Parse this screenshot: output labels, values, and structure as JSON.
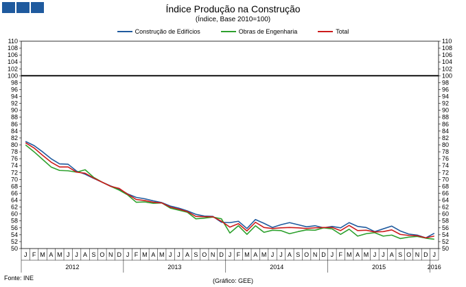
{
  "title": "Índice Produção na Construção",
  "subtitle": "(Índice, Base 2010=100)",
  "source": "Fonte: INE",
  "credit": "(Gráfico: GEE)",
  "logo": {
    "icon": "logo-squares-icon",
    "color": "#1f5a9e"
  },
  "chart_data": {
    "type": "line",
    "title": "Índice Produção na Construção",
    "subtitle": "(Índice, Base 2010=100)",
    "ylim": [
      50,
      110
    ],
    "y_ticks": [
      50,
      52,
      54,
      56,
      58,
      60,
      62,
      64,
      66,
      68,
      70,
      72,
      74,
      76,
      78,
      80,
      82,
      84,
      86,
      88,
      90,
      92,
      94,
      96,
      98,
      100,
      102,
      104,
      106,
      108,
      110
    ],
    "dual_y_axis": true,
    "reference_line": 100,
    "grid": false,
    "legend_position": "top-center",
    "months": [
      "J",
      "F",
      "M",
      "A",
      "M",
      "J",
      "J",
      "A",
      "S",
      "O",
      "N",
      "D",
      "J",
      "F",
      "M",
      "A",
      "M",
      "J",
      "J",
      "A",
      "S",
      "O",
      "N",
      "D",
      "J",
      "F",
      "M",
      "A",
      "M",
      "J",
      "J",
      "A",
      "S",
      "O",
      "N",
      "D",
      "J",
      "F",
      "M",
      "A",
      "M",
      "J",
      "J",
      "A",
      "S",
      "O",
      "N",
      "D",
      "J"
    ],
    "years": [
      {
        "label": "2012",
        "start": 0,
        "count": 12
      },
      {
        "label": "2013",
        "start": 12,
        "count": 12
      },
      {
        "label": "2014",
        "start": 24,
        "count": 12
      },
      {
        "label": "2015",
        "start": 36,
        "count": 12
      },
      {
        "label": "2016",
        "start": 48,
        "count": 1
      }
    ],
    "series": [
      {
        "name": "Construção de Edifícios",
        "color": "#1f5a9e",
        "values": [
          81.0,
          79.8,
          78.0,
          76.0,
          74.5,
          74.4,
          72.4,
          71.5,
          70.3,
          69.2,
          68.1,
          67.2,
          65.8,
          64.8,
          64.4,
          63.8,
          63.3,
          62.3,
          61.7,
          60.9,
          59.9,
          59.4,
          59.3,
          57.6,
          57.5,
          57.9,
          55.8,
          58.4,
          57.3,
          56.1,
          56.9,
          57.5,
          56.9,
          56.3,
          56.6,
          56.0,
          56.4,
          56.0,
          57.5,
          56.4,
          56.1,
          54.9,
          55.7,
          56.5,
          55.1,
          54.2,
          53.9,
          53.1,
          54.4
        ]
      },
      {
        "name": "Obras de Engenharia",
        "color": "#2ca02c",
        "values": [
          80.0,
          78.0,
          75.8,
          73.6,
          72.6,
          72.5,
          72.1,
          72.8,
          70.6,
          69.2,
          68.0,
          66.9,
          65.5,
          63.4,
          63.5,
          63.1,
          63.2,
          61.7,
          61.1,
          60.5,
          58.6,
          58.8,
          59.1,
          58.6,
          54.5,
          56.6,
          54.1,
          56.6,
          54.7,
          55.3,
          55.2,
          54.3,
          54.9,
          55.4,
          55.3,
          56.0,
          55.7,
          54.1,
          55.6,
          53.6,
          54.3,
          54.6,
          53.6,
          53.9,
          52.9,
          53.3,
          53.5,
          53.0,
          52.7
        ]
      },
      {
        "name": "Total",
        "color": "#cc1a1a",
        "values": [
          80.6,
          79.1,
          77.0,
          75.0,
          73.6,
          73.6,
          72.1,
          71.8,
          70.4,
          69.2,
          68.0,
          67.4,
          65.7,
          64.2,
          63.9,
          63.4,
          63.2,
          62.0,
          61.4,
          60.7,
          59.3,
          59.2,
          59.2,
          57.9,
          56.2,
          57.2,
          55.1,
          57.6,
          56.1,
          55.8,
          56.0,
          56.1,
          56.0,
          55.8,
          56.0,
          56.1,
          56.1,
          55.2,
          56.7,
          55.2,
          55.3,
          54.8,
          54.9,
          55.4,
          54.1,
          53.8,
          53.7,
          53.1,
          53.6
        ]
      }
    ]
  }
}
